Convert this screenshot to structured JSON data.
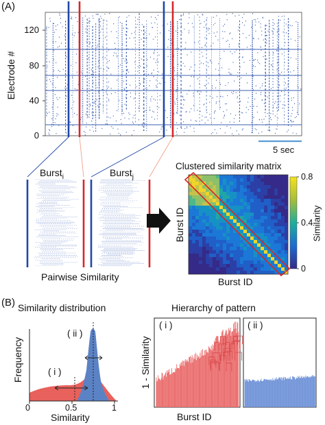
{
  "panel_a": {
    "label": "(A)",
    "raster": {
      "ylabel": "Electrode #",
      "yticks": [
        "120",
        "80",
        "40",
        "0"
      ],
      "scalebar_label": "5 sec"
    },
    "burst_i": {
      "base": "Burst",
      "sub": "i"
    },
    "burst_j": {
      "base": "Burst",
      "sub": "j"
    },
    "pairwise_label": "Pairwise Similarity",
    "matrix": {
      "title": "Clustered similarity matrix",
      "xlabel": "Burst ID",
      "ylabel": "Burst ID",
      "colorbar_label": "Similarity",
      "colorbar_ticks": [
        "0.8",
        "0.4",
        "0"
      ]
    }
  },
  "panel_b": {
    "label": "(B)",
    "distribution": {
      "title": "Similarity distribution",
      "xlabel": "Similarity",
      "ylabel": "Frequency",
      "xticks": [
        "0",
        "0.5",
        "1"
      ],
      "annot_i": "( i )",
      "annot_ii": "( ii )"
    },
    "hierarchy": {
      "title": "Hierarchy of pattern",
      "xlabel": "Burst ID",
      "ylabel": "1 - Similarity",
      "panel_i": "( i )",
      "panel_ii": "( ii )"
    }
  },
  "colors": {
    "raster_dot": "#3b5fb0",
    "blue_marker": "#1f47a8",
    "red_marker": "#d62728",
    "scalebar": "#5b9bd5",
    "dist_red": "#e8615c",
    "dist_blue": "#5b82c4",
    "dendro_red": "#ea6a6a",
    "dendro_blue": "#6a8fd6"
  }
}
